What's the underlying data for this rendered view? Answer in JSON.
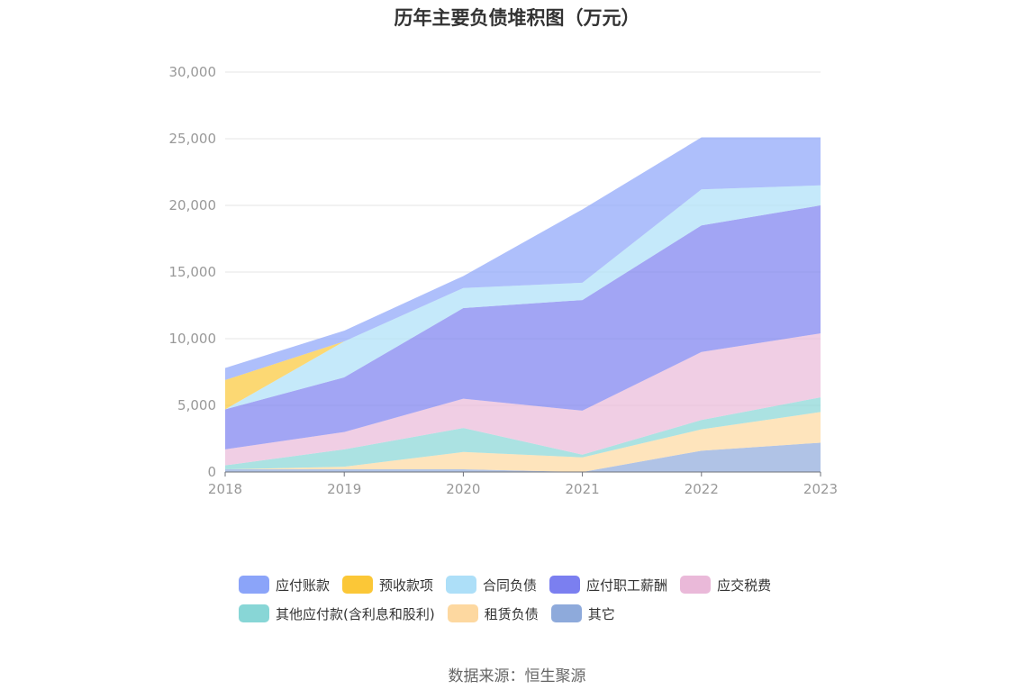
{
  "chart_data": {
    "type": "area",
    "stacked": true,
    "title": "历年主要负债堆积图（万元）",
    "x": [
      "2018",
      "2019",
      "2020",
      "2021",
      "2022",
      "2023"
    ],
    "ylim": [
      0,
      30000
    ],
    "yticks": [
      "0",
      "5,000",
      "10,000",
      "15,000",
      "20,000",
      "25,000",
      "30,000"
    ],
    "grid": true,
    "legend_position": "bottom",
    "series": [
      {
        "name": "其它",
        "color": "#8eaadb",
        "values": [
          200,
          200,
          200,
          0,
          1600,
          2200
        ]
      },
      {
        "name": "租赁负债",
        "color": "#fdd8a0",
        "values": [
          0,
          200,
          1300,
          1100,
          1600,
          2300
        ]
      },
      {
        "name": "其他应付款(含利息和股利)",
        "color": "#88d6d6",
        "values": [
          300,
          1300,
          1800,
          200,
          700,
          1100
        ]
      },
      {
        "name": "应交税费",
        "color": "#eab9d9",
        "values": [
          1200,
          1300,
          2200,
          3300,
          5100,
          4800
        ]
      },
      {
        "name": "应付职工薪酬",
        "color": "#7b7ff0",
        "values": [
          3000,
          4100,
          6800,
          8300,
          9500,
          9600
        ]
      },
      {
        "name": "合同负债",
        "color": "#addff8",
        "values": [
          0,
          2700,
          1500,
          1300,
          2700,
          1500
        ]
      },
      {
        "name": "预收款项",
        "color": "#fbc737",
        "values": [
          2200,
          0,
          0,
          0,
          0,
          0
        ]
      },
      {
        "name": "应付账款",
        "color": "#8ba4f9",
        "values": [
          900,
          800,
          900,
          5500,
          3900,
          3600
        ]
      }
    ],
    "legend_order": [
      "应付账款",
      "预收款项",
      "合同负债",
      "应付职工薪酬",
      "应交税费",
      "其他应付款(含利息和股利)",
      "租赁负债",
      "其它"
    ]
  },
  "footer": {
    "source": "数据来源：恒生聚源"
  }
}
